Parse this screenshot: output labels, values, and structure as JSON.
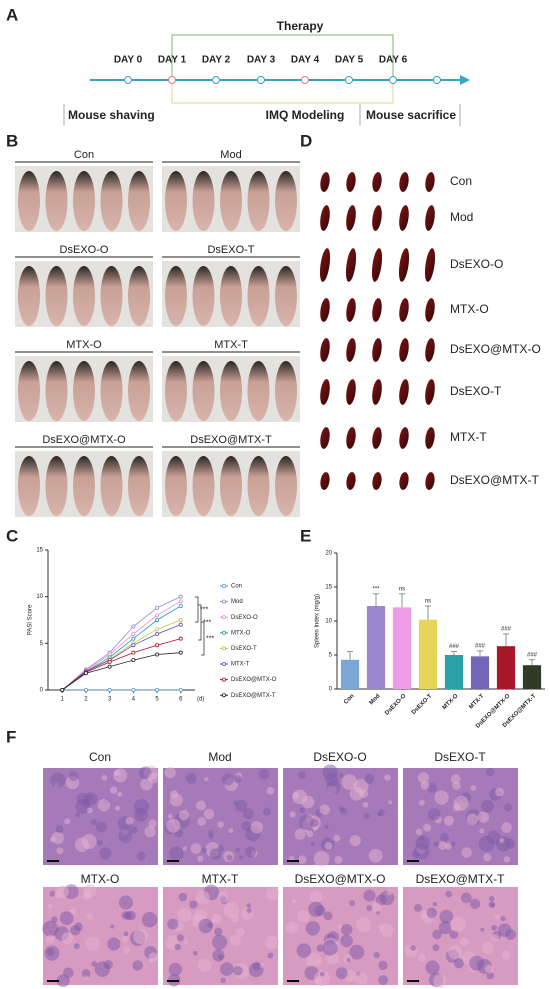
{
  "panel_labels": [
    "A",
    "B",
    "C",
    "D",
    "E",
    "F"
  ],
  "timeline": {
    "title": "Therapy",
    "days": [
      "DAY 0",
      "DAY 1",
      "DAY 2",
      "DAY 3",
      "DAY 4",
      "DAY 5",
      "DAY 6"
    ],
    "stages": [
      "Mouse shaving",
      "IMQ Modeling",
      "Mouse sacrifice"
    ]
  },
  "skin_photos": {
    "labels": [
      "Con",
      "Mod",
      "DsEXO-O",
      "DsEXO-T",
      "MTX-O",
      "MTX-T",
      "DsEXO@MTX-O",
      "DsEXO@MTX-T"
    ]
  },
  "spleens": {
    "labels": [
      "Con",
      "Mod",
      "DsEXO-O",
      "MTX-O",
      "DsEXO@MTX-O",
      "DsEXO-T",
      "MTX-T",
      "DsEXO@MTX-T"
    ]
  },
  "histology": {
    "labels": [
      "Con",
      "Mod",
      "DsEXO-O",
      "DsEXO-T",
      "MTX-O",
      "MTX-T",
      "DsEXO@MTX-O",
      "DsEXO@MTX-T"
    ]
  },
  "chart_data": [
    {
      "type": "line",
      "y_label": "PASI Score",
      "x_label": "(d)",
      "x": [
        1,
        2,
        3,
        4,
        5,
        6
      ],
      "xlim": [
        0.4,
        6.6
      ],
      "xticks": [
        1,
        2,
        3,
        4,
        5,
        6
      ],
      "ylim": [
        0,
        15
      ],
      "yticks": [
        0,
        5,
        10,
        15
      ],
      "series": [
        {
          "name": "Con",
          "color": "#5b9bd5",
          "values": [
            0,
            0,
            0,
            0,
            0,
            0
          ]
        },
        {
          "name": "Mod",
          "color": "#9a86d0",
          "values": [
            0,
            2.2,
            4,
            6.8,
            8.8,
            10
          ]
        },
        {
          "name": "DsEXO-O",
          "color": "#e88bd9",
          "values": [
            0,
            2.1,
            3.8,
            6,
            8,
            9.5
          ]
        },
        {
          "name": "MTX-O",
          "color": "#2aa1a6",
          "values": [
            0,
            2,
            3.5,
            5.5,
            7.5,
            9
          ]
        },
        {
          "name": "DsEXO-T",
          "color": "#c9c24a",
          "values": [
            0,
            2,
            3.3,
            5,
            6.5,
            7.5
          ]
        },
        {
          "name": "MTX-T",
          "color": "#5b4fae",
          "values": [
            0,
            2,
            3.2,
            4.8,
            6,
            7
          ]
        },
        {
          "name": "DsEXO@MTX-O",
          "color": "#a8162a",
          "values": [
            0,
            1.9,
            3,
            4,
            4.8,
            5.5
          ]
        },
        {
          "name": "DsEXO@MTX-T",
          "color": "#222222",
          "values": [
            0,
            1.8,
            2.5,
            3.2,
            3.8,
            4
          ]
        }
      ],
      "annotations": [
        "***",
        "***",
        "***"
      ]
    },
    {
      "type": "bar",
      "y_label": "Spleen Index (mg/g)",
      "categories": [
        "Con",
        "Mod",
        "DsEXO-O",
        "DsEXO-T",
        "MTX-O",
        "MTX-T",
        "DsEXO@MTX-O",
        "DsEXO@MTX-T"
      ],
      "values": [
        4.3,
        12.2,
        12,
        10.2,
        5,
        4.8,
        6.3,
        3.5
      ],
      "errors": [
        1.2,
        1.8,
        2,
        2,
        0.5,
        0.8,
        1.8,
        0.8
      ],
      "significance": [
        null,
        "***",
        "ns",
        "ns",
        "###",
        "###",
        "###",
        "###"
      ],
      "colors": [
        "#7aa7d6",
        "#9a86d0",
        "#f09be6",
        "#e7d45a",
        "#2aa1a6",
        "#7465b8",
        "#a8162a",
        "#2f3a27"
      ],
      "ylim": [
        0,
        20
      ],
      "yticks": [
        0,
        5,
        10,
        15,
        20
      ]
    }
  ]
}
